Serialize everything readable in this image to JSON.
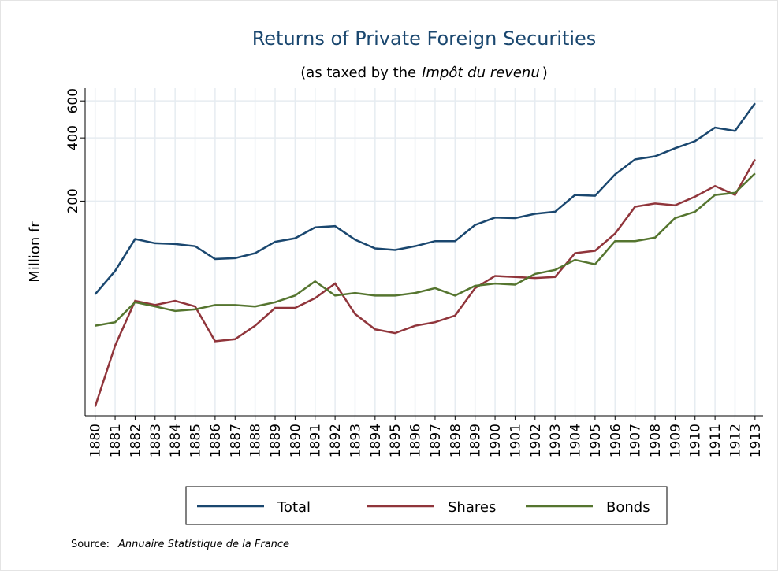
{
  "chart_data": {
    "type": "line",
    "title": "Returns of Private Foreign Securities",
    "subtitle_parts": [
      "(as taxed by the",
      "Impôt du revenu",
      ")"
    ],
    "y_label": "Million fr",
    "source_label": "Source:",
    "source": "Annuaire Statistique de la France",
    "log_scale": true,
    "grid": true,
    "x": [
      1880,
      1881,
      1882,
      1883,
      1884,
      1885,
      1886,
      1887,
      1888,
      1889,
      1890,
      1891,
      1892,
      1893,
      1894,
      1895,
      1896,
      1897,
      1898,
      1899,
      1900,
      1901,
      1902,
      1903,
      1904,
      1905,
      1906,
      1907,
      1908,
      1909,
      1910,
      1911,
      1912,
      1913
    ],
    "xlim": [
      1879.5,
      1913.4
    ],
    "ylim": [
      19,
      690
    ],
    "yticks": [
      200,
      400,
      600
    ],
    "series": [
      {
        "name": "Total",
        "color": "#1a476f",
        "values": [
          72,
          93,
          132,
          126,
          125,
          122,
          106,
          107,
          113,
          128,
          133,
          150,
          152,
          131,
          119,
          117,
          122,
          129,
          129,
          154,
          167,
          166,
          174,
          178,
          214,
          212,
          268,
          316,
          327,
          357,
          386,
          448,
          432,
          585
        ]
      },
      {
        "name": "Shares",
        "color": "#90353b",
        "values": [
          21,
          41,
          67,
          64,
          67,
          63,
          43,
          44,
          51,
          62,
          62,
          69,
          81,
          58,
          49,
          47,
          51,
          53,
          57,
          77,
          88,
          87,
          86,
          87,
          113,
          116,
          140,
          188,
          195,
          191,
          210,
          236,
          214,
          316
        ]
      },
      {
        "name": "Bonds",
        "color": "#55752f",
        "values": [
          51,
          53,
          66,
          63,
          60,
          61,
          64,
          64,
          63,
          66,
          71,
          83,
          71,
          73,
          71,
          71,
          73,
          77,
          71,
          79,
          81,
          80,
          90,
          94,
          105,
          100,
          129,
          129,
          134,
          166,
          178,
          214,
          219,
          271
        ]
      }
    ]
  }
}
